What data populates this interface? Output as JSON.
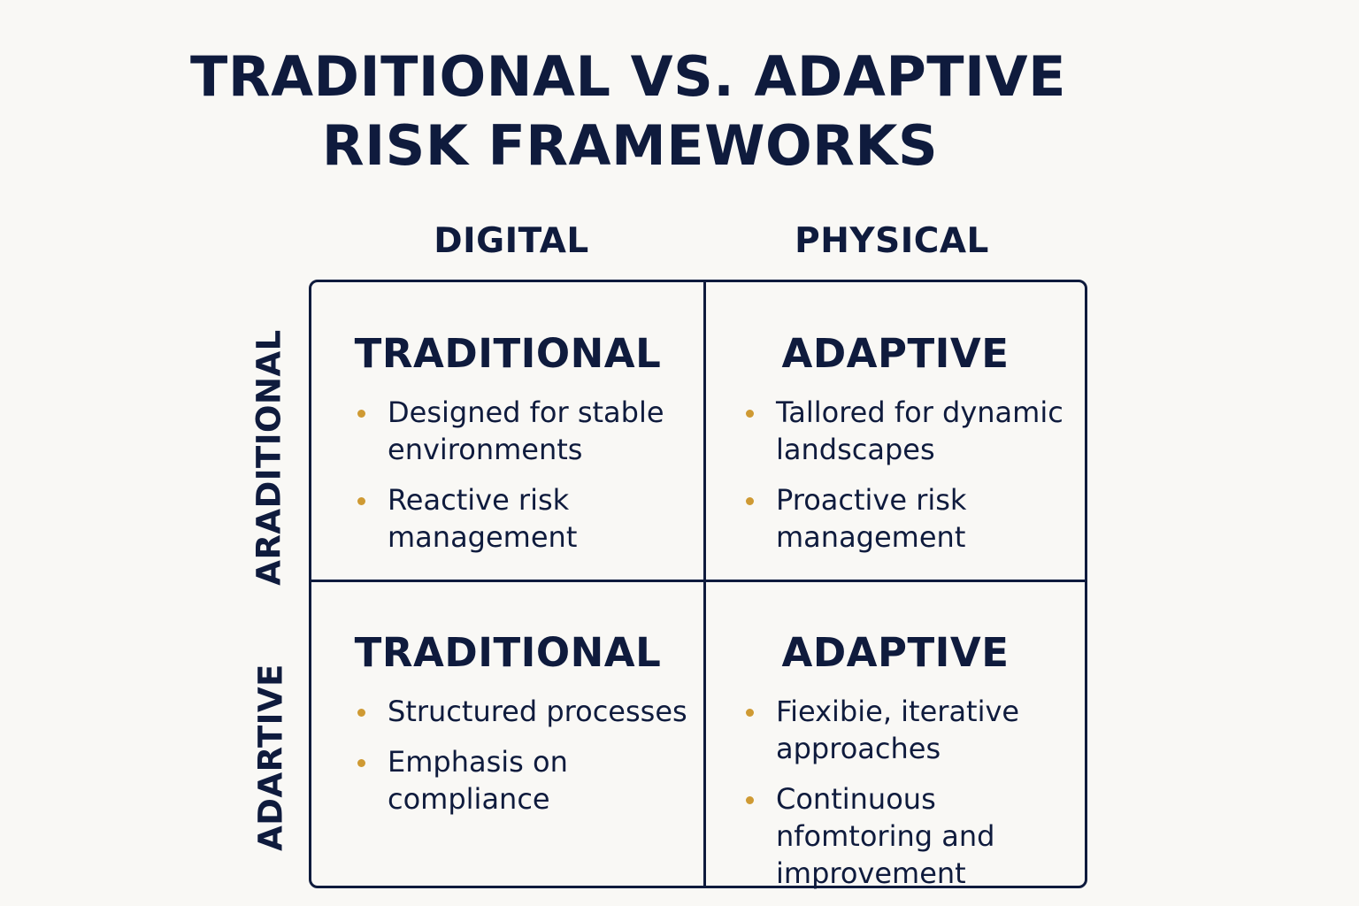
{
  "title": {
    "line1": "TRADITIONAL VS. ADAPTIVE",
    "line2": "RISK FRAMEWORKS"
  },
  "columns": [
    "DIGITAL",
    "PHYSICAL"
  ],
  "rows": [
    "ARADITIONAL",
    "ADARTIVE"
  ],
  "cells": [
    {
      "title": "TRADITIONAL",
      "bullets": [
        "Designed for stable environments",
        "Reactive risk management"
      ]
    },
    {
      "title": "ADAPTIVE",
      "bullets": [
        "Tallored for dynamic landscapes",
        "Proactive risk management"
      ]
    },
    {
      "title": "TRADITIONAL",
      "bullets": [
        "Structured processes",
        "Emphasis on compliance"
      ]
    },
    {
      "title": "ADAPTIVE",
      "bullets": [
        "Fiexibie, iterative approaches",
        "Continuous nfomtoring and improvement"
      ]
    }
  ],
  "colors": {
    "ink": "#0f1b3d",
    "bullet": "#cf9a33",
    "background": "#f9f8f5"
  }
}
